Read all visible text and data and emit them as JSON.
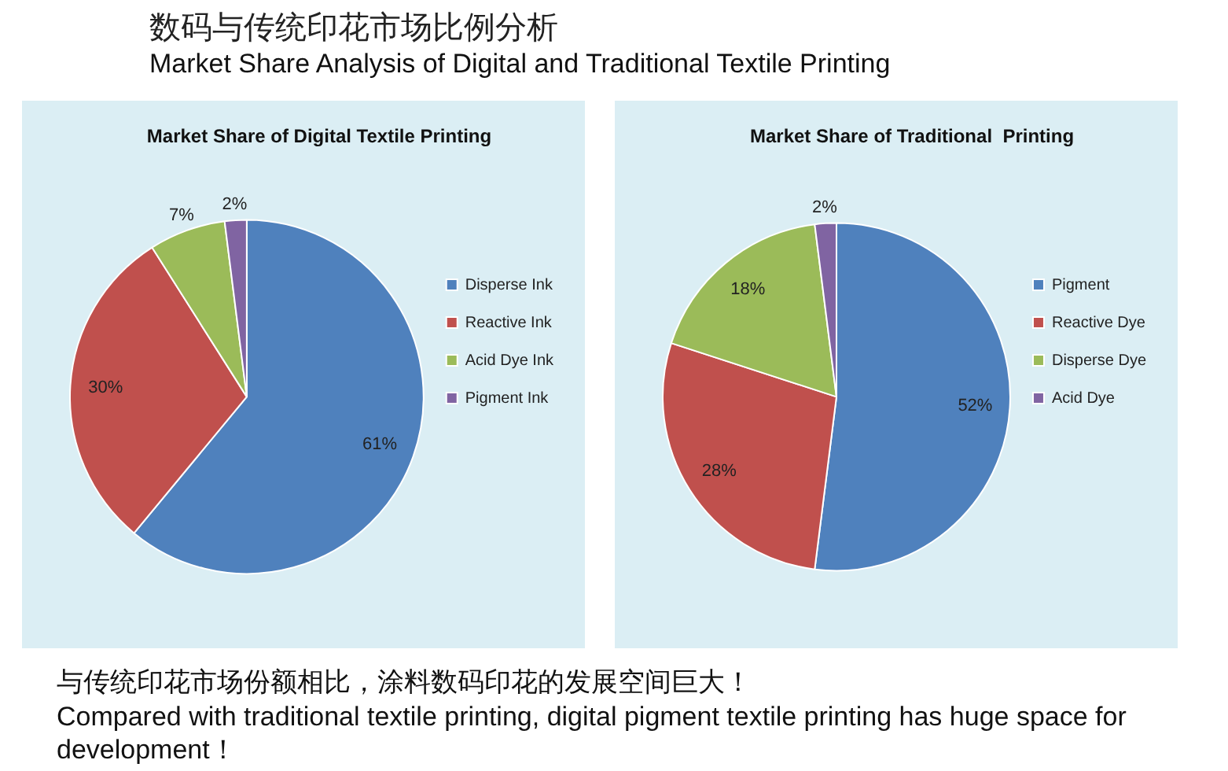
{
  "chart_data": [
    {
      "type": "other",
      "title": "数码与传统印花市场比例分析",
      "subtitle": "Market Share Analysis of Digital and Traditional Textile Printing",
      "annotations": [
        "与传统印花市场份额相比，涂料数码印花的发展空间巨大！",
        "Compared with traditional textile printing, digital pigment textile printing has huge space for development！"
      ]
    },
    {
      "type": "pie",
      "title": "Market Share of Digital Textile Printing",
      "categories": [
        "Disperse Ink",
        "Reactive Ink",
        "Acid Dye Ink",
        "Pigment Ink"
      ],
      "values": [
        61,
        30,
        7,
        2
      ],
      "value_labels": [
        "61%",
        "30%",
        "7%",
        "2%"
      ],
      "colors": [
        "#4f81bd",
        "#c0504d",
        "#9bbb59",
        "#8064a2"
      ],
      "legend": "right"
    },
    {
      "type": "pie",
      "title": "Market Share of Traditional  Printing",
      "categories": [
        "Pigment",
        "Reactive Dye",
        "Disperse Dye",
        "Acid Dye"
      ],
      "values": [
        52,
        28,
        18,
        2
      ],
      "value_labels": [
        "52%",
        "28%",
        "18%",
        "2%"
      ],
      "colors": [
        "#4f81bd",
        "#c0504d",
        "#9bbb59",
        "#8064a2"
      ],
      "legend": "right"
    }
  ]
}
